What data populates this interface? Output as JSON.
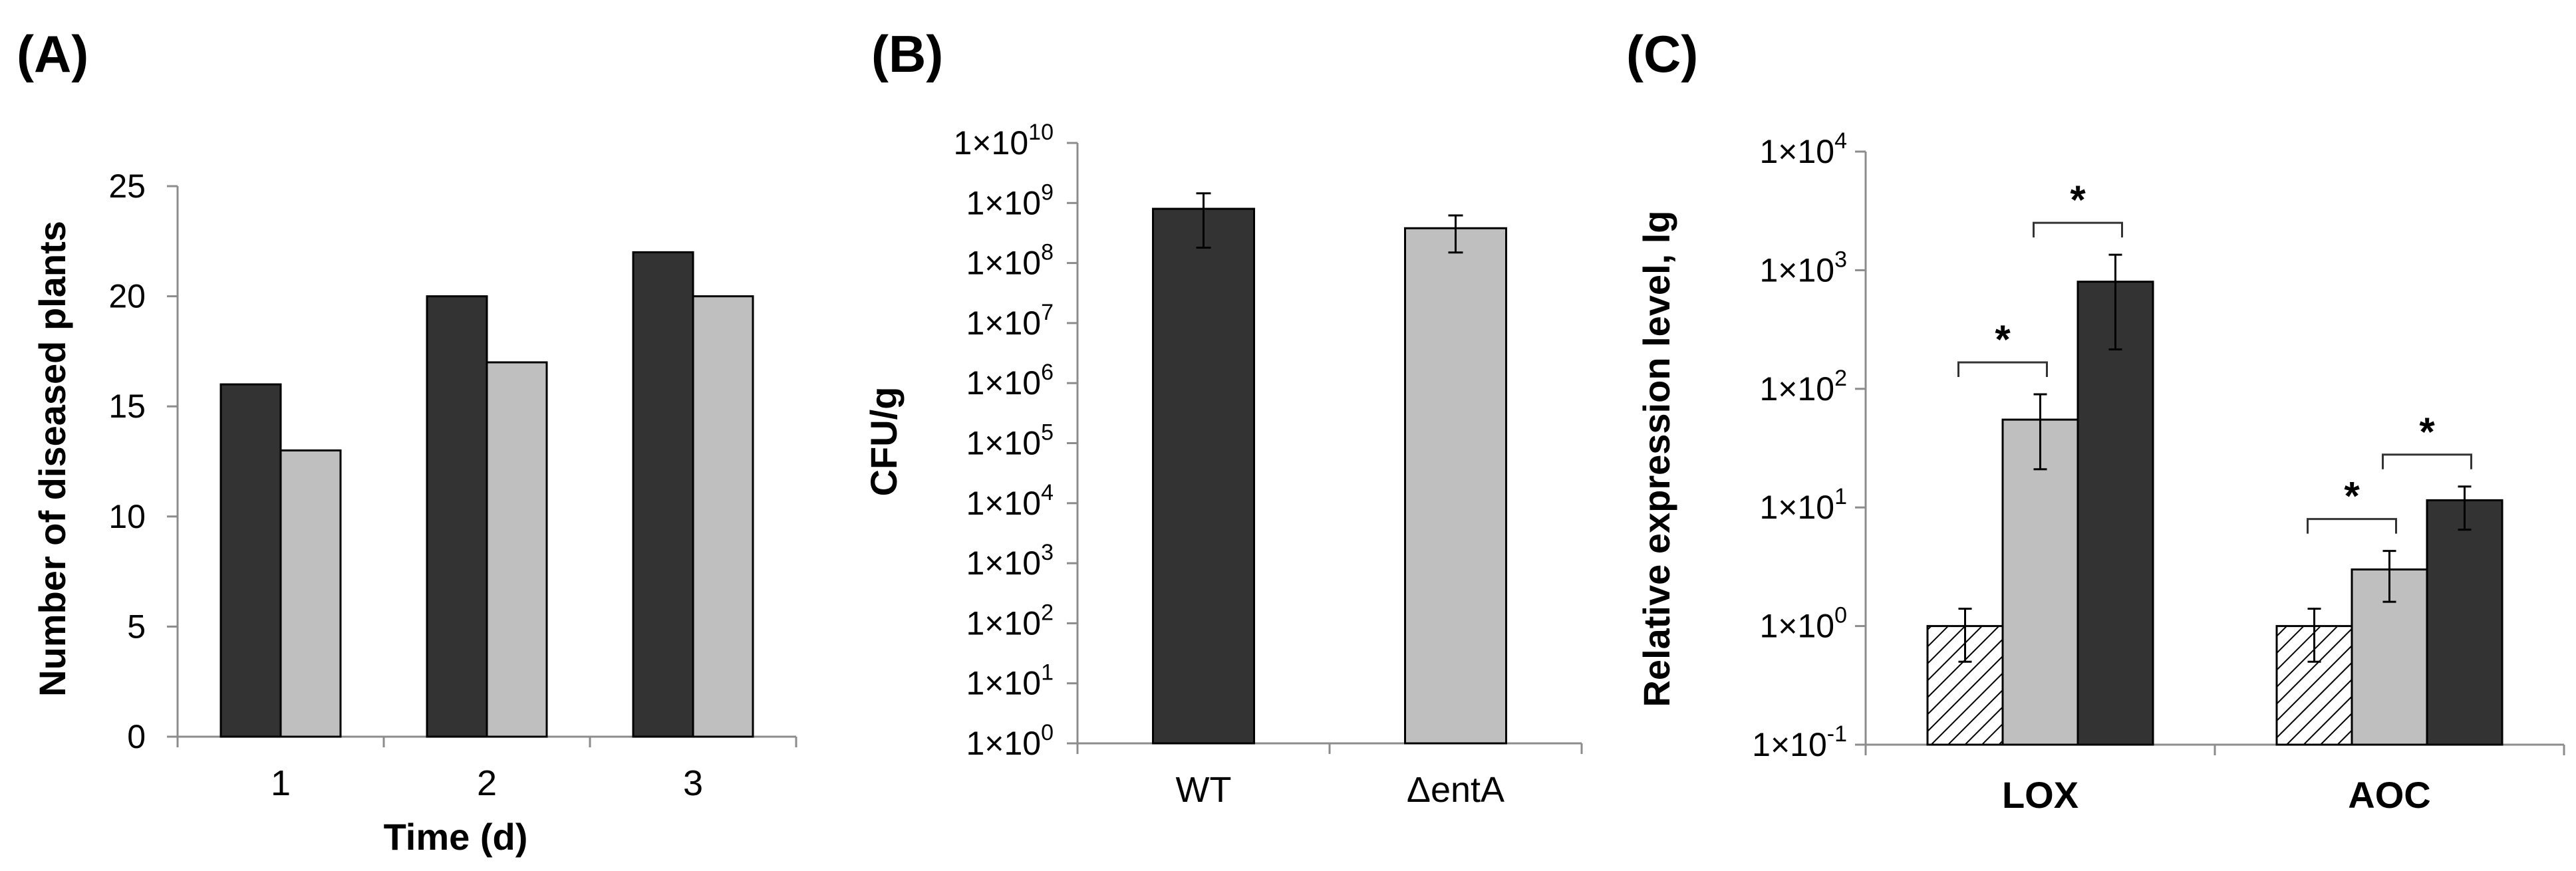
{
  "colors": {
    "dark": "#333333",
    "light": "#bfbfbf",
    "axis": "#8c8c8c",
    "hatch": "#ffffff"
  },
  "chart_data": [
    {
      "panel": "(A)",
      "type": "bar",
      "categories": [
        "1",
        "2",
        "3"
      ],
      "series": [
        {
          "name": "dark",
          "values": [
            16,
            20,
            22
          ]
        },
        {
          "name": "light",
          "values": [
            13,
            17,
            20
          ]
        }
      ],
      "xlabel": "Time (d)",
      "ylabel": "Number of diseased plants",
      "ylim": [
        0,
        25
      ],
      "yticks": [
        "0",
        "5",
        "10",
        "15",
        "20",
        "25"
      ]
    },
    {
      "panel": "(B)",
      "type": "bar",
      "scale": "log",
      "categories": [
        "WT",
        "ΔentA"
      ],
      "values": [
        800000000,
        380000000
      ],
      "err_low": [
        180000000,
        150000000
      ],
      "err_high": [
        1450000000,
        620000000
      ],
      "xlabel": "",
      "ylabel": "CFU/g",
      "ylim_exp": [
        0,
        10
      ],
      "ytick_base": "1×10",
      "ytick_exponents": [
        "0",
        "1",
        "2",
        "3",
        "4",
        "5",
        "6",
        "7",
        "8",
        "9",
        "10"
      ]
    },
    {
      "panel": "(C)",
      "type": "bar",
      "scale": "log",
      "categories": [
        "LOX",
        "AOC"
      ],
      "series": [
        {
          "name": "hatched",
          "values": [
            1,
            1
          ],
          "err_low": [
            0.5,
            0.5
          ],
          "err_high": [
            1.4,
            1.4
          ]
        },
        {
          "name": "light",
          "values": [
            55,
            3
          ],
          "err_low": [
            21,
            1.6
          ],
          "err_high": [
            90,
            4.3
          ]
        },
        {
          "name": "dark",
          "values": [
            800,
            11.5
          ],
          "err_low": [
            215,
            6.5
          ],
          "err_high": [
            1350,
            15
          ]
        }
      ],
      "significance": [
        {
          "category": "LOX",
          "from": "hatched",
          "to": "light",
          "label": "*"
        },
        {
          "category": "LOX",
          "from": "light",
          "to": "dark",
          "label": "*"
        },
        {
          "category": "AOC",
          "from": "hatched",
          "to": "light",
          "label": "*"
        },
        {
          "category": "AOC",
          "from": "light",
          "to": "dark",
          "label": "*"
        }
      ],
      "xlabel": "",
      "ylabel": "Relative expression level, lg",
      "ylim_exp": [
        -1,
        4
      ],
      "ytick_base": "1×10",
      "ytick_exponents": [
        "-1",
        "0",
        "1",
        "2",
        "3",
        "4"
      ]
    }
  ]
}
